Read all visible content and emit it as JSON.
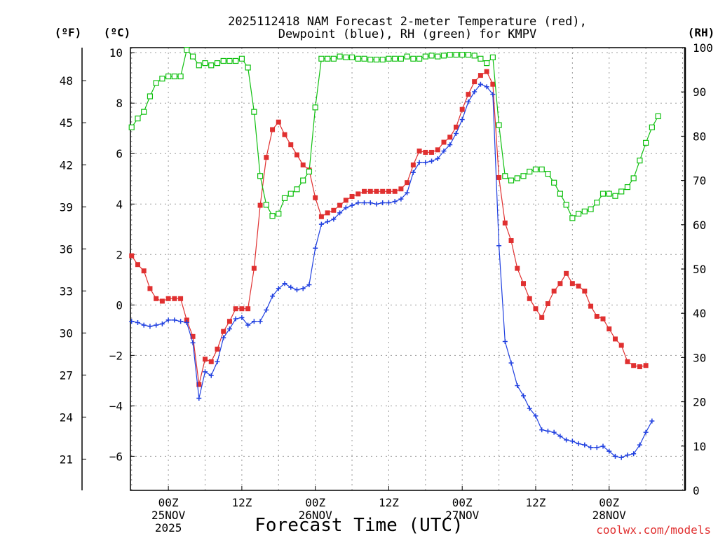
{
  "chart_data": {
    "type": "line",
    "title_line1": "2025112418 NAM Forecast 2-meter Temperature (red),",
    "title_line2": "Dewpoint (blue), RH (green) for KMPV",
    "xlabel": "Forecast Time (UTC)",
    "credit": "coolwx.com/models",
    "left_outer_unit": "(ºF)",
    "left_inner_unit": "(ºC)",
    "right_unit": "(RH)",
    "y_celsius": {
      "min": -7.35,
      "max": 10.2,
      "ticks": [
        10,
        8,
        6,
        4,
        2,
        0,
        -2,
        -4,
        -6
      ],
      "tick_labels": [
        "10",
        "8",
        "6",
        "4",
        "2",
        "0",
        "−2",
        "−4",
        "−6"
      ]
    },
    "y_fahrenheit": {
      "ticks": [
        48,
        45,
        42,
        39,
        36,
        33,
        30,
        27,
        24,
        21
      ],
      "tick_labels": [
        "48",
        "45",
        "42",
        "39",
        "36",
        "33",
        "30",
        "27",
        "24",
        "21"
      ]
    },
    "y_rh": {
      "min": 0,
      "max": 100,
      "ticks": [
        0,
        10,
        20,
        30,
        40,
        50,
        60,
        70,
        80,
        90,
        100
      ],
      "tick_labels": [
        "0",
        "10",
        "20",
        "30",
        "40",
        "50",
        "60",
        "70",
        "80",
        "90",
        "100"
      ]
    },
    "x_hours": {
      "min": -6.2,
      "max": 84.4,
      "ticks": [
        0,
        12,
        24,
        36,
        48,
        60,
        72
      ],
      "tick_labels": [
        {
          "hour": 0,
          "lines": [
            "00Z",
            "25NOV",
            "2025"
          ]
        },
        {
          "hour": 12,
          "lines": [
            "12Z"
          ]
        },
        {
          "hour": 24,
          "lines": [
            "00Z",
            "26NOV"
          ]
        },
        {
          "hour": 36,
          "lines": [
            "12Z"
          ]
        },
        {
          "hour": 48,
          "lines": [
            "00Z",
            "27NOV"
          ]
        },
        {
          "hour": 60,
          "lines": [
            "12Z"
          ]
        },
        {
          "hour": 72,
          "lines": [
            "00Z",
            "28NOV"
          ]
        }
      ]
    },
    "grid": true,
    "series": [
      {
        "name": "Temperature",
        "unit": "C",
        "color": "#e03030",
        "marker": "filled-square",
        "points": [
          [
            -6,
            1.95
          ],
          [
            -5,
            1.6
          ],
          [
            -4,
            1.35
          ],
          [
            -3,
            0.65
          ],
          [
            -2,
            0.25
          ],
          [
            -1,
            0.15
          ],
          [
            0,
            0.25
          ],
          [
            1,
            0.25
          ],
          [
            2,
            0.25
          ],
          [
            3,
            -0.6
          ],
          [
            4,
            -1.25
          ],
          [
            5,
            -3.15
          ],
          [
            6,
            -2.15
          ],
          [
            7,
            -2.25
          ],
          [
            8,
            -1.75
          ],
          [
            9,
            -1.05
          ],
          [
            10,
            -0.65
          ],
          [
            11,
            -0.15
          ],
          [
            12,
            -0.15
          ],
          [
            13,
            -0.15
          ],
          [
            14,
            1.45
          ],
          [
            15,
            3.95
          ],
          [
            16,
            5.85
          ],
          [
            17,
            6.95
          ],
          [
            18,
            7.25
          ],
          [
            19,
            6.75
          ],
          [
            20,
            6.35
          ],
          [
            21,
            5.95
          ],
          [
            22,
            5.55
          ],
          [
            23,
            5.35
          ],
          [
            24,
            4.25
          ],
          [
            25,
            3.5
          ],
          [
            26,
            3.65
          ],
          [
            27,
            3.75
          ],
          [
            28,
            3.95
          ],
          [
            29,
            4.15
          ],
          [
            30,
            4.3
          ],
          [
            31,
            4.4
          ],
          [
            32,
            4.5
          ],
          [
            33,
            4.5
          ],
          [
            34,
            4.5
          ],
          [
            35,
            4.5
          ],
          [
            36,
            4.5
          ],
          [
            37,
            4.5
          ],
          [
            38,
            4.6
          ],
          [
            39,
            4.85
          ],
          [
            40,
            5.55
          ],
          [
            41,
            6.1
          ],
          [
            42,
            6.05
          ],
          [
            43,
            6.05
          ],
          [
            44,
            6.15
          ],
          [
            45,
            6.45
          ],
          [
            46,
            6.65
          ],
          [
            47,
            7.05
          ],
          [
            48,
            7.75
          ],
          [
            49,
            8.35
          ],
          [
            50,
            8.85
          ],
          [
            51,
            9.1
          ],
          [
            52,
            9.25
          ],
          [
            53,
            8.75
          ],
          [
            54,
            5.05
          ],
          [
            55,
            3.25
          ],
          [
            56,
            2.55
          ],
          [
            57,
            1.45
          ],
          [
            58,
            0.85
          ],
          [
            59,
            0.25
          ],
          [
            60,
            -0.15
          ],
          [
            61,
            -0.5
          ],
          [
            62,
            0.05
          ],
          [
            63,
            0.55
          ],
          [
            64,
            0.85
          ],
          [
            65,
            1.25
          ],
          [
            66,
            0.85
          ],
          [
            67,
            0.75
          ],
          [
            68,
            0.55
          ],
          [
            69,
            -0.05
          ],
          [
            70,
            -0.45
          ],
          [
            71,
            -0.55
          ],
          [
            72,
            -0.95
          ],
          [
            73,
            -1.35
          ],
          [
            74,
            -1.6
          ],
          [
            75,
            -2.25
          ],
          [
            76,
            -2.4
          ],
          [
            77,
            -2.45
          ],
          [
            78,
            -2.4
          ]
        ]
      },
      {
        "name": "Dewpoint",
        "unit": "C",
        "color": "#2040e0",
        "marker": "plus",
        "points": [
          [
            -6,
            -0.65
          ],
          [
            -5,
            -0.7
          ],
          [
            -4,
            -0.8
          ],
          [
            -3,
            -0.85
          ],
          [
            -2,
            -0.8
          ],
          [
            -1,
            -0.75
          ],
          [
            0,
            -0.6
          ],
          [
            1,
            -0.6
          ],
          [
            2,
            -0.65
          ],
          [
            3,
            -0.7
          ],
          [
            4,
            -1.5
          ],
          [
            5,
            -3.7
          ],
          [
            6,
            -2.65
          ],
          [
            7,
            -2.8
          ],
          [
            8,
            -2.25
          ],
          [
            9,
            -1.3
          ],
          [
            10,
            -0.95
          ],
          [
            11,
            -0.55
          ],
          [
            12,
            -0.5
          ],
          [
            13,
            -0.8
          ],
          [
            14,
            -0.65
          ],
          [
            15,
            -0.65
          ],
          [
            16,
            -0.2
          ],
          [
            17,
            0.35
          ],
          [
            18,
            0.65
          ],
          [
            19,
            0.85
          ],
          [
            20,
            0.7
          ],
          [
            21,
            0.6
          ],
          [
            22,
            0.65
          ],
          [
            23,
            0.8
          ],
          [
            24,
            2.25
          ],
          [
            25,
            3.2
          ],
          [
            26,
            3.3
          ],
          [
            27,
            3.4
          ],
          [
            28,
            3.65
          ],
          [
            29,
            3.85
          ],
          [
            30,
            3.95
          ],
          [
            31,
            4.05
          ],
          [
            32,
            4.05
          ],
          [
            33,
            4.05
          ],
          [
            34,
            4.0
          ],
          [
            35,
            4.05
          ],
          [
            36,
            4.05
          ],
          [
            37,
            4.1
          ],
          [
            38,
            4.2
          ],
          [
            39,
            4.45
          ],
          [
            40,
            5.25
          ],
          [
            41,
            5.65
          ],
          [
            42,
            5.65
          ],
          [
            43,
            5.7
          ],
          [
            44,
            5.8
          ],
          [
            45,
            6.1
          ],
          [
            46,
            6.35
          ],
          [
            47,
            6.8
          ],
          [
            48,
            7.35
          ],
          [
            49,
            8.05
          ],
          [
            50,
            8.45
          ],
          [
            51,
            8.75
          ],
          [
            52,
            8.65
          ],
          [
            53,
            8.35
          ],
          [
            54,
            2.35
          ],
          [
            55,
            -1.45
          ],
          [
            56,
            -2.3
          ],
          [
            57,
            -3.2
          ],
          [
            58,
            -3.6
          ],
          [
            59,
            -4.1
          ],
          [
            60,
            -4.4
          ],
          [
            61,
            -4.95
          ],
          [
            62,
            -5.0
          ],
          [
            63,
            -5.05
          ],
          [
            64,
            -5.2
          ],
          [
            65,
            -5.35
          ],
          [
            66,
            -5.4
          ],
          [
            67,
            -5.5
          ],
          [
            68,
            -5.55
          ],
          [
            69,
            -5.65
          ],
          [
            70,
            -5.65
          ],
          [
            71,
            -5.6
          ],
          [
            72,
            -5.8
          ],
          [
            73,
            -6.0
          ],
          [
            74,
            -6.05
          ],
          [
            75,
            -5.95
          ],
          [
            76,
            -5.9
          ],
          [
            77,
            -5.55
          ],
          [
            78,
            -5.05
          ],
          [
            79,
            -4.6
          ]
        ]
      },
      {
        "name": "RH",
        "unit": "%",
        "color": "#10c010",
        "marker": "open-square",
        "points": [
          [
            -6,
            82
          ],
          [
            -5,
            84
          ],
          [
            -4,
            85.5
          ],
          [
            -3,
            89
          ],
          [
            -2,
            92
          ],
          [
            -1,
            93
          ],
          [
            0,
            93.5
          ],
          [
            1,
            93.5
          ],
          [
            2,
            93.5
          ],
          [
            3,
            99.5
          ],
          [
            4,
            98
          ],
          [
            5,
            96
          ],
          [
            6,
            96.5
          ],
          [
            7,
            96
          ],
          [
            8,
            96.5
          ],
          [
            9,
            97
          ],
          [
            10,
            97
          ],
          [
            11,
            97
          ],
          [
            12,
            97.5
          ],
          [
            13,
            95.5
          ],
          [
            14,
            85.5
          ],
          [
            15,
            71
          ],
          [
            16,
            64.5
          ],
          [
            17,
            62
          ],
          [
            18,
            62.5
          ],
          [
            19,
            66
          ],
          [
            20,
            67
          ],
          [
            21,
            68
          ],
          [
            22,
            70
          ],
          [
            23,
            72
          ],
          [
            24,
            86.5
          ],
          [
            25,
            97.5
          ],
          [
            26,
            97.5
          ],
          [
            27,
            97.5
          ],
          [
            28,
            98
          ],
          [
            29,
            97.8
          ],
          [
            30,
            97.8
          ],
          [
            31,
            97.5
          ],
          [
            32,
            97.5
          ],
          [
            33,
            97.3
          ],
          [
            34,
            97.3
          ],
          [
            35,
            97.3
          ],
          [
            36,
            97.5
          ],
          [
            37,
            97.5
          ],
          [
            38,
            97.5
          ],
          [
            39,
            98
          ],
          [
            40,
            97.5
          ],
          [
            41,
            97.5
          ],
          [
            42,
            98
          ],
          [
            43,
            98.2
          ],
          [
            44,
            98
          ],
          [
            45,
            98.2
          ],
          [
            46,
            98.4
          ],
          [
            47,
            98.4
          ],
          [
            48,
            98.4
          ],
          [
            49,
            98.4
          ],
          [
            50,
            98.2
          ],
          [
            51,
            97.5
          ],
          [
            52,
            96.5
          ],
          [
            53,
            97.8
          ],
          [
            54,
            82.5
          ],
          [
            55,
            71
          ],
          [
            56,
            70
          ],
          [
            57,
            70.5
          ],
          [
            58,
            71
          ],
          [
            59,
            72
          ],
          [
            60,
            72.5
          ],
          [
            61,
            72.5
          ],
          [
            62,
            71.5
          ],
          [
            63,
            69.5
          ],
          [
            64,
            67
          ],
          [
            65,
            64.5
          ],
          [
            66,
            61.5
          ],
          [
            67,
            62.5
          ],
          [
            68,
            63
          ],
          [
            69,
            63.5
          ],
          [
            70,
            65
          ],
          [
            71,
            67
          ],
          [
            72,
            67
          ],
          [
            73,
            66.5
          ],
          [
            74,
            67.5
          ],
          [
            75,
            68.5
          ],
          [
            76,
            70.5
          ],
          [
            77,
            74.5
          ],
          [
            78,
            78.5
          ],
          [
            79,
            82
          ],
          [
            80,
            84.5
          ]
        ]
      }
    ]
  }
}
